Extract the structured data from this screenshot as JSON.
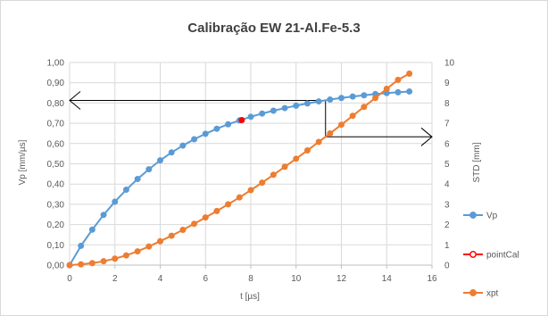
{
  "chart_data": {
    "type": "line",
    "title": "Calibração EW 21-Al.Fe-5.3",
    "xlabel": "t [µs]",
    "ylabel": "Vp [mm/µs]",
    "y2label": "STD [mm]",
    "xlim": [
      0,
      16
    ],
    "ylim": [
      0,
      1
    ],
    "y2lim": [
      0,
      10
    ],
    "xticks": [
      "0",
      "2",
      "4",
      "6",
      "8",
      "10",
      "12",
      "14",
      "16"
    ],
    "yticks": [
      "0,00",
      "0,10",
      "0,20",
      "0,30",
      "0,40",
      "0,50",
      "0,60",
      "0,70",
      "0,80",
      "0,90",
      "1,00"
    ],
    "y2ticks": [
      "0",
      "1",
      "2",
      "3",
      "4",
      "5",
      "6",
      "7",
      "8",
      "9",
      "10"
    ],
    "grid": true,
    "legend_position": "right",
    "series": [
      {
        "name": "Vp",
        "axis": "left",
        "color": "#5B9BD5",
        "x": [
          0,
          0.5,
          1,
          1.5,
          2,
          2.5,
          3,
          3.5,
          4,
          4.5,
          5,
          5.5,
          6,
          6.5,
          7,
          7.5,
          8,
          8.5,
          9,
          9.5,
          10,
          10.5,
          11,
          11.5,
          12,
          12.5,
          13,
          13.5,
          14,
          14.5,
          15
        ],
        "y": [
          0.0,
          0.095,
          0.175,
          0.248,
          0.313,
          0.372,
          0.425,
          0.473,
          0.517,
          0.556,
          0.59,
          0.621,
          0.648,
          0.673,
          0.695,
          0.714,
          0.732,
          0.748,
          0.762,
          0.775,
          0.787,
          0.798,
          0.808,
          0.817,
          0.825,
          0.832,
          0.838,
          0.844,
          0.849,
          0.853,
          0.857
        ]
      },
      {
        "name": "pointCal",
        "axis": "left",
        "color": "#FF0000",
        "x": [
          7.6
        ],
        "y": [
          0.716
        ]
      },
      {
        "name": "xpt",
        "axis": "right",
        "color": "#ED7D31",
        "x": [
          0,
          0.5,
          1,
          1.5,
          2,
          2.5,
          3,
          3.5,
          4,
          4.5,
          5,
          5.5,
          6,
          6.5,
          7,
          7.5,
          8,
          8.5,
          9,
          9.5,
          10,
          10.5,
          11,
          11.5,
          12,
          12.5,
          13,
          13.5,
          14,
          14.5,
          15
        ],
        "y": [
          0.0,
          0.04,
          0.1,
          0.19,
          0.32,
          0.48,
          0.68,
          0.92,
          1.18,
          1.45,
          1.74,
          2.04,
          2.35,
          2.67,
          3.0,
          3.34,
          3.7,
          4.07,
          4.46,
          4.85,
          5.25,
          5.66,
          6.08,
          6.5,
          6.93,
          7.37,
          7.81,
          8.25,
          8.7,
          9.14,
          9.45
        ]
      }
    ],
    "annotations": [
      {
        "type": "arrow",
        "from": [
          11.3,
          0.813
        ],
        "to": [
          0,
          0.813
        ]
      },
      {
        "type": "segment",
        "from": [
          11.3,
          0.813
        ],
        "to": [
          11.3,
          0.633
        ]
      },
      {
        "type": "arrow",
        "from": [
          11.3,
          0.633
        ],
        "to": [
          16,
          0.633
        ]
      }
    ]
  }
}
